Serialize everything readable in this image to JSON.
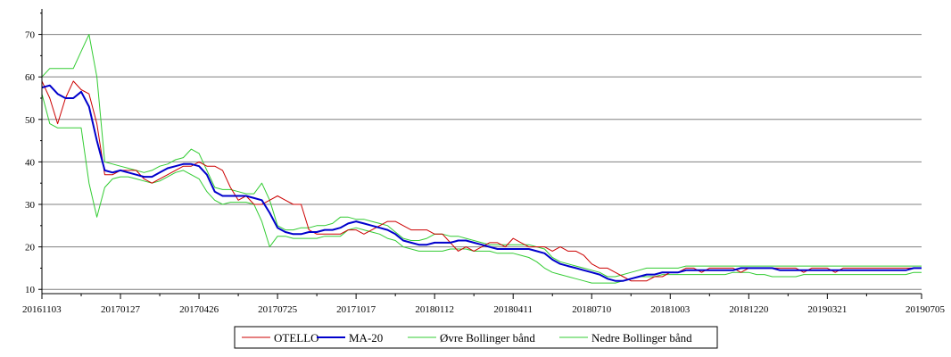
{
  "chart_data": {
    "type": "line",
    "title": "",
    "xlabel": "",
    "ylabel": "",
    "x_tick_labels": [
      "20161103",
      "20170127",
      "20170426",
      "20170725",
      "20171017",
      "20180112",
      "20180411",
      "20180710",
      "20181003",
      "20181220",
      "20190321",
      "20190705"
    ],
    "y_ticks": [
      10,
      20,
      30,
      40,
      50,
      60,
      70
    ],
    "ylim": [
      9,
      76
    ],
    "grid": "horizontal",
    "legend_position": "bottom",
    "colors": {
      "OTELLO": "#cc0000",
      "MA-20": "#0000cc",
      "Øvre Bollinger bånd": "#33cc33",
      "Nedre Bollinger bånd": "#33cc33"
    },
    "x_tick_index": [
      0,
      20,
      40,
      60,
      80,
      100,
      120,
      140,
      160,
      180,
      200,
      224
    ],
    "series": [
      {
        "name": "OTELLO",
        "x_index": [
          0,
          2,
          4,
          6,
          8,
          10,
          12,
          14,
          16,
          18,
          20,
          22,
          24,
          26,
          28,
          30,
          32,
          34,
          36,
          38,
          40,
          42,
          44,
          46,
          48,
          50,
          52,
          54,
          56,
          58,
          60,
          62,
          64,
          66,
          68,
          70,
          72,
          74,
          76,
          78,
          80,
          82,
          84,
          86,
          88,
          90,
          92,
          94,
          96,
          98,
          100,
          102,
          104,
          106,
          108,
          110,
          112,
          114,
          116,
          118,
          120,
          122,
          124,
          126,
          128,
          130,
          132,
          134,
          136,
          138,
          140,
          142,
          144,
          146,
          148,
          150,
          152,
          154,
          156,
          158,
          160,
          162,
          164,
          166,
          168,
          170,
          172,
          174,
          176,
          178,
          180,
          182,
          184,
          186,
          188,
          190,
          192,
          194,
          196,
          198,
          200,
          202,
          204,
          206,
          208,
          210,
          212,
          214,
          216,
          218,
          220,
          222,
          224
        ],
        "values": [
          59,
          55,
          49,
          55,
          59,
          57,
          56,
          49,
          37,
          37,
          38,
          38,
          38,
          36,
          35,
          36,
          37,
          38,
          39,
          39,
          40,
          39,
          39,
          38,
          34,
          31,
          32,
          30,
          30,
          31,
          32,
          31,
          30,
          30,
          24,
          23,
          23,
          23,
          23,
          24,
          24,
          23,
          24,
          25,
          26,
          26,
          25,
          24,
          24,
          24,
          23,
          23,
          21,
          19,
          20,
          19,
          20,
          21,
          21,
          20,
          22,
          21,
          20,
          20,
          20,
          19,
          20,
          19,
          19,
          18,
          16,
          15,
          15,
          14,
          13,
          12,
          12,
          12,
          13,
          13,
          14,
          14,
          15,
          15,
          14,
          15,
          15,
          15,
          15,
          14,
          15,
          15,
          15,
          15,
          15,
          15,
          15,
          14,
          15,
          15,
          15,
          14,
          15,
          15,
          15,
          15,
          15,
          15,
          15,
          15,
          15,
          15,
          15
        ]
      },
      {
        "name": "MA-20",
        "x_index": [
          0,
          2,
          4,
          6,
          8,
          10,
          12,
          14,
          16,
          18,
          20,
          22,
          24,
          26,
          28,
          30,
          32,
          34,
          36,
          38,
          40,
          42,
          44,
          46,
          48,
          50,
          52,
          54,
          56,
          58,
          60,
          62,
          64,
          66,
          68,
          70,
          72,
          74,
          76,
          78,
          80,
          82,
          84,
          86,
          88,
          90,
          92,
          94,
          96,
          98,
          100,
          102,
          104,
          106,
          108,
          110,
          112,
          114,
          116,
          118,
          120,
          122,
          124,
          126,
          128,
          130,
          132,
          134,
          136,
          138,
          140,
          142,
          144,
          146,
          148,
          150,
          152,
          154,
          156,
          158,
          160,
          162,
          164,
          166,
          168,
          170,
          172,
          174,
          176,
          178,
          180,
          182,
          184,
          186,
          188,
          190,
          192,
          194,
          196,
          198,
          200,
          202,
          204,
          206,
          208,
          210,
          212,
          214,
          216,
          218,
          220,
          222,
          224
        ],
        "values": [
          57.5,
          58,
          56,
          55,
          55,
          56.5,
          53,
          45,
          38,
          37.5,
          38,
          37.5,
          37,
          36.5,
          36.5,
          37.5,
          38.5,
          39,
          39.5,
          39.5,
          39,
          37,
          33,
          32,
          32,
          32,
          32,
          31.5,
          31,
          28,
          24.5,
          23.5,
          23,
          23,
          23.5,
          23.5,
          24,
          24,
          24.5,
          25.5,
          26,
          25.5,
          25,
          24.5,
          24,
          23,
          21.5,
          21,
          20.5,
          20.5,
          21,
          21,
          21,
          21.5,
          21.5,
          21,
          20.5,
          20,
          19.5,
          19.5,
          19.5,
          19.5,
          19.5,
          19,
          18.5,
          17,
          16,
          15.5,
          15,
          14.5,
          14,
          13.5,
          12.5,
          12,
          12,
          12.5,
          13,
          13.5,
          13.5,
          14,
          14,
          14,
          14.5,
          14.5,
          14.5,
          14.5,
          14.5,
          14.5,
          14.5,
          15,
          15,
          15,
          15,
          15,
          14.5,
          14.5,
          14.5,
          14.5,
          14.5,
          14.5,
          14.5,
          14.5,
          14.5,
          14.5,
          14.5,
          14.5,
          14.5,
          14.5,
          14.5,
          14.5,
          14.5,
          15,
          15
        ]
      },
      {
        "name": "Øvre Bollinger bånd",
        "x_index": [
          0,
          2,
          4,
          6,
          8,
          10,
          12,
          14,
          16,
          18,
          20,
          22,
          24,
          26,
          28,
          30,
          32,
          34,
          36,
          38,
          40,
          42,
          44,
          46,
          48,
          50,
          52,
          54,
          56,
          58,
          60,
          62,
          64,
          66,
          68,
          70,
          72,
          74,
          76,
          78,
          80,
          82,
          84,
          86,
          88,
          90,
          92,
          94,
          96,
          98,
          100,
          102,
          104,
          106,
          108,
          110,
          112,
          114,
          116,
          118,
          120,
          122,
          124,
          126,
          128,
          130,
          132,
          134,
          136,
          138,
          140,
          142,
          144,
          146,
          148,
          150,
          152,
          154,
          156,
          158,
          160,
          162,
          164,
          166,
          168,
          170,
          172,
          174,
          176,
          178,
          180,
          182,
          184,
          186,
          188,
          190,
          192,
          194,
          196,
          198,
          200,
          202,
          204,
          206,
          208,
          210,
          212,
          214,
          216,
          218,
          220,
          222,
          224
        ],
        "values": [
          60,
          62,
          62,
          62,
          62,
          66,
          70,
          60,
          40,
          39.5,
          39,
          38.5,
          38,
          37.5,
          38,
          39,
          39.5,
          40.5,
          41,
          43,
          42,
          38,
          34,
          33.5,
          33.5,
          33,
          32.5,
          32.5,
          35,
          31,
          25,
          24,
          24,
          24.5,
          24.5,
          25,
          25,
          25.5,
          27,
          27,
          26.5,
          26.5,
          26,
          25.5,
          25,
          23.5,
          22,
          21.5,
          21.5,
          22,
          23,
          23,
          22.5,
          22.5,
          22,
          21.5,
          21,
          20.5,
          20.5,
          20.5,
          20.5,
          20.5,
          20.5,
          20,
          19.5,
          17.5,
          16.5,
          16,
          15.5,
          15,
          14.5,
          14,
          13,
          13,
          13.5,
          14,
          14.5,
          15,
          15,
          15,
          15,
          15,
          15.5,
          15.5,
          15.5,
          15.5,
          15.5,
          15.5,
          15.5,
          15.5,
          15.5,
          15.5,
          15.5,
          15.5,
          15.5,
          15.5,
          15.5,
          15.5,
          15.5,
          15.5,
          15.5,
          15.5,
          15.5,
          15.5,
          15.5,
          15.5,
          15.5,
          15.5,
          15.5,
          15.5,
          15.5,
          15.5,
          15.5
        ]
      },
      {
        "name": "Nedre Bollinger bånd",
        "x_index": [
          0,
          2,
          4,
          6,
          8,
          10,
          12,
          14,
          16,
          18,
          20,
          22,
          24,
          26,
          28,
          30,
          32,
          34,
          36,
          38,
          40,
          42,
          44,
          46,
          48,
          50,
          52,
          54,
          56,
          58,
          60,
          62,
          64,
          66,
          68,
          70,
          72,
          74,
          76,
          78,
          80,
          82,
          84,
          86,
          88,
          90,
          92,
          94,
          96,
          98,
          100,
          102,
          104,
          106,
          108,
          110,
          112,
          114,
          116,
          118,
          120,
          122,
          124,
          126,
          128,
          130,
          132,
          134,
          136,
          138,
          140,
          142,
          144,
          146,
          148,
          150,
          152,
          154,
          156,
          158,
          160,
          162,
          164,
          166,
          168,
          170,
          172,
          174,
          176,
          178,
          180,
          182,
          184,
          186,
          188,
          190,
          192,
          194,
          196,
          198,
          200,
          202,
          204,
          206,
          208,
          210,
          212,
          214,
          216,
          218,
          220,
          222,
          224
        ],
        "values": [
          56,
          49,
          48,
          48,
          48,
          48,
          35,
          27,
          34,
          36,
          36.5,
          36.5,
          36,
          35.5,
          35,
          35.5,
          36.5,
          37.5,
          38,
          37,
          36,
          33,
          31,
          30,
          30.5,
          30.5,
          30.5,
          30,
          26,
          20,
          22.5,
          22.5,
          22,
          22,
          22,
          22,
          22.5,
          22.5,
          22.5,
          24,
          24.5,
          24,
          23.5,
          23,
          22,
          21.5,
          20,
          19.5,
          19,
          19,
          19,
          19,
          19.5,
          19.5,
          19.5,
          19,
          19,
          19,
          18.5,
          18.5,
          18.5,
          18,
          17.5,
          16.5,
          15,
          14,
          13.5,
          13,
          12.5,
          12,
          11.5,
          11.5,
          11.5,
          11.5,
          12,
          12.5,
          13,
          13,
          13,
          13.5,
          13.5,
          13.5,
          13.5,
          13.5,
          13.5,
          13.5,
          13.5,
          13.5,
          14,
          14,
          14,
          13.5,
          13.5,
          13,
          13,
          13,
          13,
          13.5,
          13.5,
          13.5,
          13.5,
          13.5,
          13.5,
          13.5,
          13.5,
          13.5,
          13.5,
          13.5,
          13.5,
          13.5,
          13.5,
          14,
          14
        ]
      }
    ],
    "legend": [
      {
        "label": "OTELLO",
        "color": "#cc0000"
      },
      {
        "label": "MA-20",
        "color": "#0000cc"
      },
      {
        "label": "Øvre Bollinger bånd",
        "color": "#33cc33"
      },
      {
        "label": "Nedre Bollinger bånd",
        "color": "#33cc33"
      }
    ]
  }
}
